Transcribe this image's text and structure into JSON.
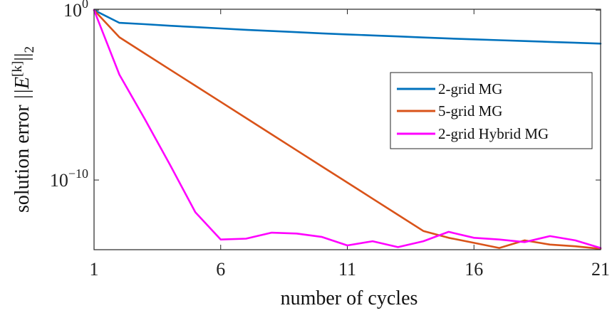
{
  "chart_data": {
    "type": "line",
    "title": "",
    "xlabel": "number of cycles",
    "ylabel": "solution error",
    "ylabel_math": "||E",
    "ylabel_sup": "[k]",
    "ylabel_tail": "||",
    "ylabel_sub": "2",
    "yscale": "log",
    "xlim": [
      1,
      21
    ],
    "ylim_log10": [
      -14.1,
      0.05
    ],
    "xticks": [
      "1",
      "6",
      "11",
      "16",
      "21"
    ],
    "xtick_values": [
      1,
      6,
      11,
      16,
      21
    ],
    "yticks": [
      {
        "base": "10",
        "exp": "0",
        "log": 0
      },
      {
        "base": "10",
        "exp": "−10",
        "log": -10
      }
    ],
    "legend_position": "center-right",
    "x": [
      1,
      2,
      3,
      4,
      5,
      6,
      7,
      8,
      9,
      10,
      11,
      12,
      13,
      14,
      15,
      16,
      17,
      18,
      19,
      20,
      21
    ],
    "series": [
      {
        "name": "2-grid MG",
        "color": "#0072BD",
        "log10_values": [
          0,
          -0.75,
          -0.83,
          -0.92,
          -1.0,
          -1.08,
          -1.16,
          -1.23,
          -1.3,
          -1.37,
          -1.43,
          -1.49,
          -1.55,
          -1.61,
          -1.67,
          -1.72,
          -1.77,
          -1.82,
          -1.87,
          -1.92,
          -1.97
        ]
      },
      {
        "name": "5-grid MG",
        "color": "#D95319",
        "log10_values": [
          0,
          -1.6,
          -2.55,
          -3.5,
          -4.45,
          -5.4,
          -6.35,
          -7.3,
          -8.25,
          -9.2,
          -10.15,
          -11.1,
          -12.05,
          -13.0,
          -13.4,
          -13.7,
          -14.0,
          -13.55,
          -13.8,
          -13.9,
          -14.05
        ]
      },
      {
        "name": "2-grid Hybrid MG",
        "color": "#FF00FF",
        "log10_values": [
          0,
          -3.8,
          -6.4,
          -9.1,
          -11.9,
          -13.5,
          -13.45,
          -13.1,
          -13.15,
          -13.35,
          -13.85,
          -13.6,
          -13.95,
          -13.6,
          -13.05,
          -13.4,
          -13.5,
          -13.65,
          -13.3,
          -13.55,
          -14.0
        ]
      }
    ]
  }
}
